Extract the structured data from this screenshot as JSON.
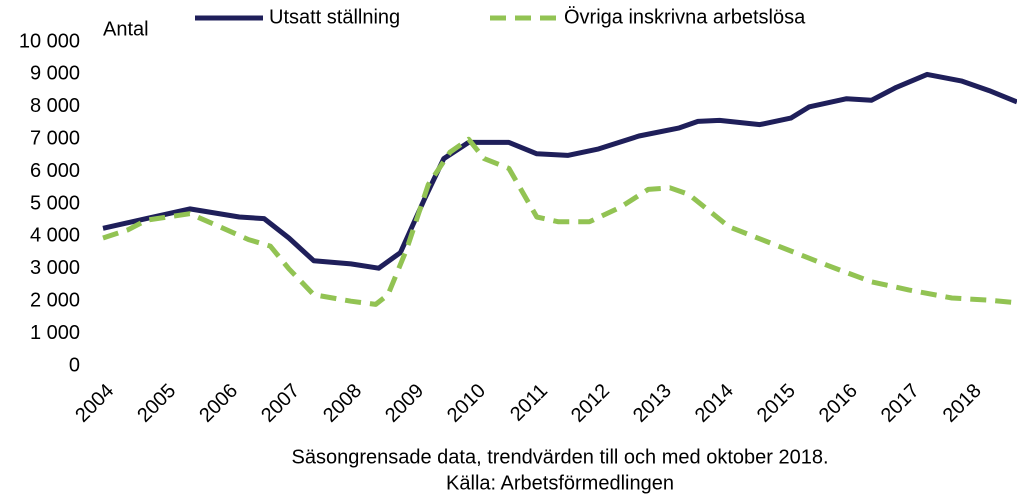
{
  "chart_data": {
    "type": "line",
    "y_label": "Antal",
    "notes": [
      "Säsongrensade data, trendvärden till och med oktober 2018.",
      "Källa: Arbetsförmedlingen"
    ],
    "xlim": [
      2004,
      2018.75
    ],
    "xticks": [
      2004,
      2005,
      2006,
      2007,
      2008,
      2009,
      2010,
      2011,
      2012,
      2013,
      2014,
      2015,
      2016,
      2017,
      2018
    ],
    "ylim": [
      0,
      10000
    ],
    "yticks": [
      0,
      {
        "value": 1000,
        "label": "1 000"
      },
      {
        "value": 2000,
        "label": "2 000"
      },
      {
        "value": 3000,
        "label": "3 000"
      },
      {
        "value": 4000,
        "label": "4 000"
      },
      {
        "value": 5000,
        "label": "5 000"
      },
      {
        "value": 6000,
        "label": "6 000"
      },
      {
        "value": 7000,
        "label": "7 000"
      },
      {
        "value": 8000,
        "label": "8 000"
      },
      {
        "value": 9000,
        "label": "9 000"
      },
      {
        "value": 10000,
        "label": "10 000"
      }
    ],
    "grid": false,
    "legend": "top",
    "series": [
      {
        "name": "Utsatt ställning",
        "color": "#1f1f5a",
        "dash": false,
        "x": [
          2004,
          2004.7,
          2005.4,
          2006.2,
          2006.6,
          2007.0,
          2007.4,
          2008.0,
          2008.45,
          2008.8,
          2009.2,
          2009.5,
          2009.9,
          2010.55,
          2011.0,
          2011.5,
          2012.0,
          2012.65,
          2013.3,
          2013.6,
          2013.95,
          2014.6,
          2015.1,
          2015.4,
          2016.0,
          2016.4,
          2016.8,
          2017.3,
          2017.85,
          2018.3,
          2018.75
        ],
        "values": [
          4250,
          4550,
          4850,
          4600,
          4550,
          3950,
          3250,
          3150,
          3020,
          3500,
          5200,
          6400,
          6900,
          6900,
          6550,
          6500,
          6700,
          7100,
          7350,
          7550,
          7580,
          7450,
          7650,
          8000,
          8250,
          8200,
          8600,
          9000,
          8800,
          8500,
          8150
        ]
      },
      {
        "name": "Övriga inskrivna arbetslösa",
        "color": "#92c353",
        "dash": true,
        "x": [
          2004,
          2004.4,
          2004.7,
          2005.4,
          2006.0,
          2006.35,
          2006.7,
          2007.0,
          2007.4,
          2008.0,
          2008.4,
          2008.6,
          2008.9,
          2009.25,
          2009.6,
          2009.9,
          2010.15,
          2010.55,
          2011.0,
          2011.35,
          2011.85,
          2012.35,
          2012.8,
          2013.15,
          2013.45,
          2014.1,
          2014.9,
          2015.7,
          2016.4,
          2017.0,
          2017.7,
          2018.3,
          2018.75
        ],
        "values": [
          3950,
          4200,
          4500,
          4700,
          4200,
          3900,
          3700,
          3000,
          2200,
          2000,
          1900,
          2200,
          3600,
          5600,
          6600,
          7000,
          6400,
          6100,
          4600,
          4450,
          4450,
          4900,
          5450,
          5500,
          5300,
          4300,
          3700,
          3100,
          2600,
          2350,
          2100,
          2030,
          1950
        ]
      }
    ]
  }
}
